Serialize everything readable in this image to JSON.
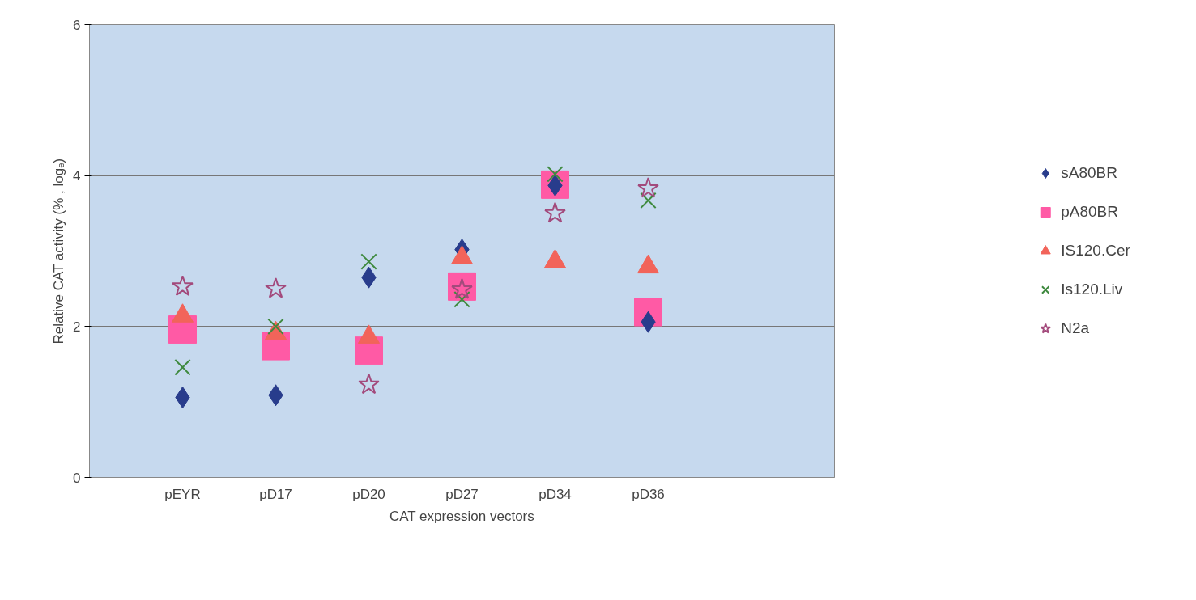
{
  "chart_data": {
    "type": "scatter",
    "ylabel": "Relative CAT activity (% , logₑ)",
    "xlabel": "CAT expression vectors",
    "categories": [
      "pEYR",
      "pD17",
      "pD20",
      "pD27",
      "pD34",
      "pD36"
    ],
    "ylim": [
      0,
      6
    ],
    "yticks": [
      0,
      2,
      4,
      6
    ],
    "grid": "y",
    "legend": "right",
    "series": [
      {
        "name": "sA80BR",
        "color": "#283c8c",
        "marker": "diamond",
        "values": [
          1.06,
          1.09,
          2.65,
          3.02,
          3.87,
          2.06
        ]
      },
      {
        "name": "pA80BR",
        "color": "#ff5aa5",
        "marker": "square",
        "values": [
          1.96,
          1.74,
          1.68,
          2.53,
          3.88,
          2.19
        ]
      },
      {
        "name": "IS120.Cer",
        "color": "#f2645a",
        "marker": "triangle",
        "values": [
          2.14,
          1.91,
          1.86,
          2.91,
          2.86,
          2.79
        ]
      },
      {
        "name": "Is120.Liv",
        "color": "#3f8a3f",
        "marker": "cross",
        "values": [
          1.46,
          2.0,
          2.86,
          2.36,
          4.02,
          3.67
        ]
      },
      {
        "name": "N2a",
        "color": "#a34a7c",
        "marker": "star",
        "values": [
          2.53,
          2.5,
          1.23,
          2.49,
          3.5,
          3.83
        ]
      }
    ]
  }
}
